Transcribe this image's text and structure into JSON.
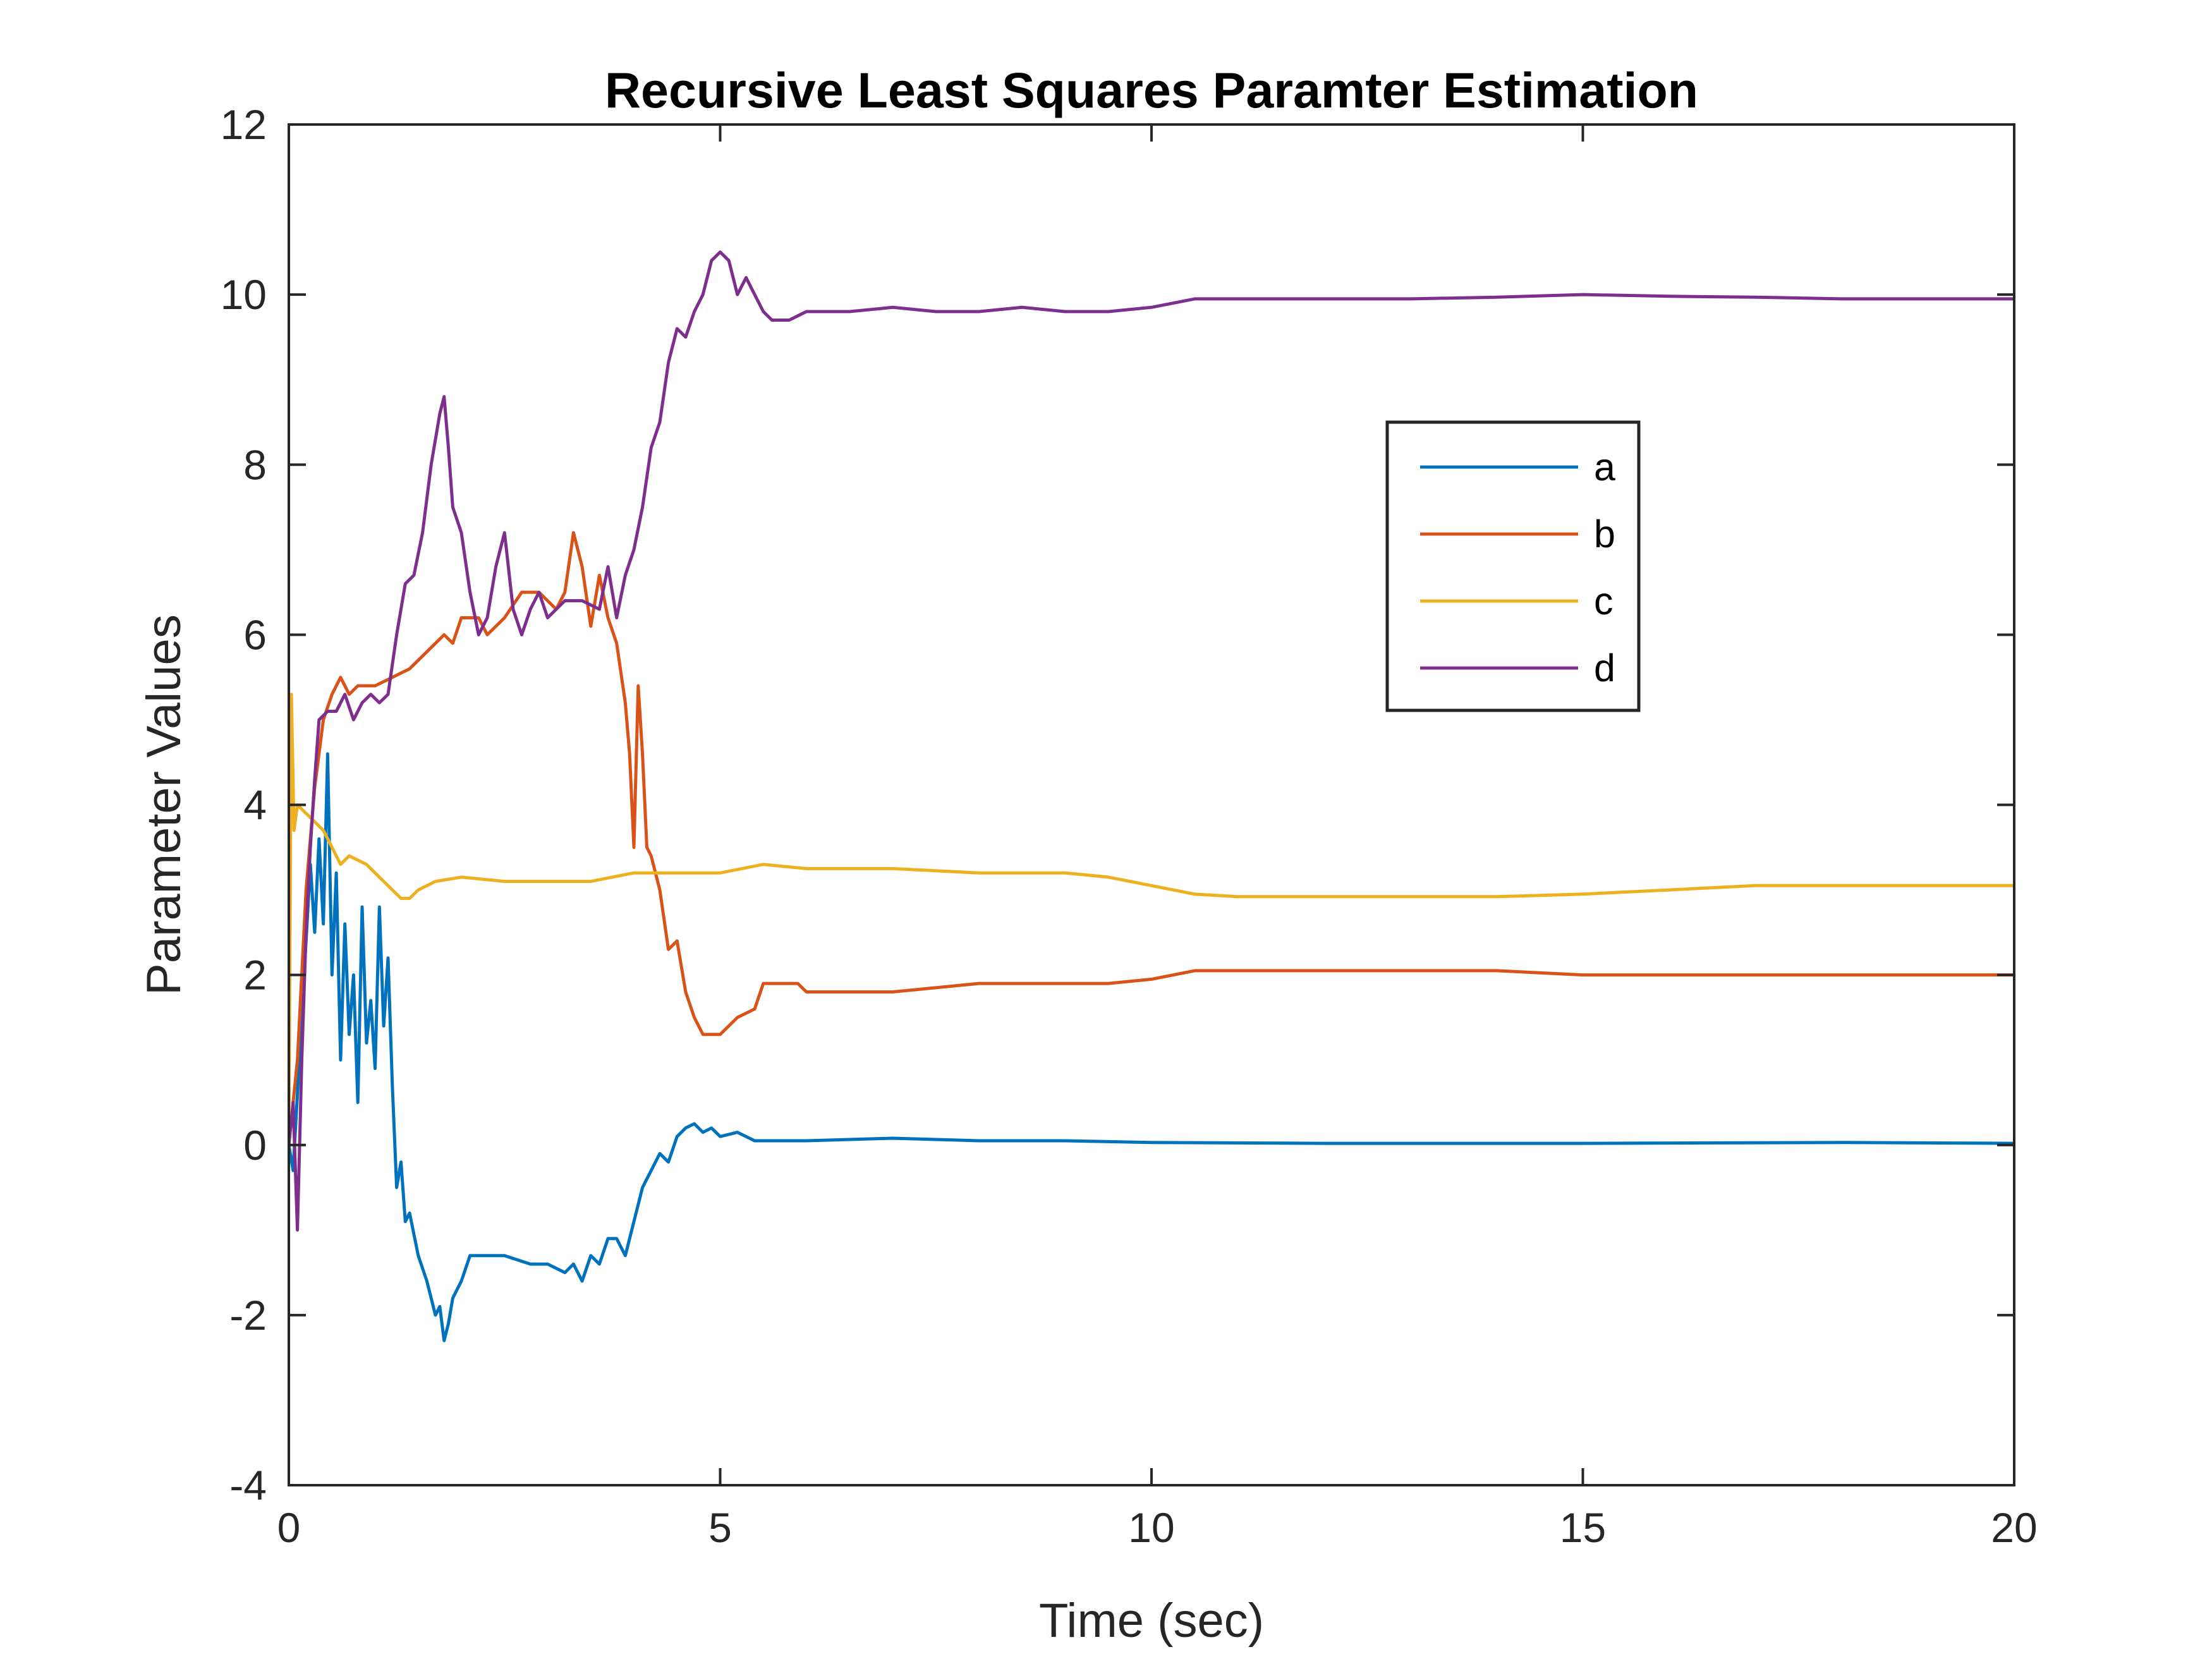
{
  "chart_data": {
    "type": "line",
    "title": "Recursive Least Squares Paramter Estimation",
    "xlabel": "Time (sec)",
    "ylabel": "Parameter Values",
    "xlim": [
      0,
      20
    ],
    "ylim": [
      -4,
      12
    ],
    "xticks": [
      0,
      5,
      10,
      15,
      20
    ],
    "yticks": [
      -4,
      -2,
      0,
      2,
      4,
      6,
      8,
      10,
      12
    ],
    "grid": false,
    "legend_position": "upper-right inside axes",
    "series": [
      {
        "name": "a",
        "color": "#0072BD",
        "points": [
          [
            0,
            0
          ],
          [
            0.05,
            -0.3
          ],
          [
            0.1,
            0.6
          ],
          [
            0.15,
            1.6
          ],
          [
            0.2,
            2.4
          ],
          [
            0.25,
            3.3
          ],
          [
            0.3,
            2.5
          ],
          [
            0.35,
            3.6
          ],
          [
            0.4,
            2.6
          ],
          [
            0.45,
            4.6
          ],
          [
            0.5,
            2.0
          ],
          [
            0.55,
            3.2
          ],
          [
            0.6,
            1.0
          ],
          [
            0.65,
            2.6
          ],
          [
            0.7,
            1.3
          ],
          [
            0.75,
            2.0
          ],
          [
            0.8,
            0.5
          ],
          [
            0.85,
            2.8
          ],
          [
            0.9,
            1.2
          ],
          [
            0.95,
            1.7
          ],
          [
            1.0,
            0.9
          ],
          [
            1.05,
            2.8
          ],
          [
            1.1,
            1.4
          ],
          [
            1.15,
            2.2
          ],
          [
            1.2,
            0.7
          ],
          [
            1.25,
            -0.5
          ],
          [
            1.3,
            -0.2
          ],
          [
            1.35,
            -0.9
          ],
          [
            1.4,
            -0.8
          ],
          [
            1.5,
            -1.3
          ],
          [
            1.6,
            -1.6
          ],
          [
            1.7,
            -2.0
          ],
          [
            1.75,
            -1.9
          ],
          [
            1.8,
            -2.3
          ],
          [
            1.85,
            -2.1
          ],
          [
            1.9,
            -1.8
          ],
          [
            2.0,
            -1.6
          ],
          [
            2.1,
            -1.3
          ],
          [
            2.3,
            -1.3
          ],
          [
            2.5,
            -1.3
          ],
          [
            2.8,
            -1.4
          ],
          [
            3.0,
            -1.4
          ],
          [
            3.2,
            -1.5
          ],
          [
            3.3,
            -1.4
          ],
          [
            3.4,
            -1.6
          ],
          [
            3.5,
            -1.3
          ],
          [
            3.6,
            -1.4
          ],
          [
            3.7,
            -1.1
          ],
          [
            3.8,
            -1.1
          ],
          [
            3.9,
            -1.3
          ],
          [
            4.0,
            -0.9
          ],
          [
            4.1,
            -0.5
          ],
          [
            4.2,
            -0.3
          ],
          [
            4.3,
            -0.1
          ],
          [
            4.4,
            -0.2
          ],
          [
            4.5,
            0.1
          ],
          [
            4.6,
            0.2
          ],
          [
            4.7,
            0.25
          ],
          [
            4.8,
            0.15
          ],
          [
            4.9,
            0.2
          ],
          [
            5.0,
            0.1
          ],
          [
            5.2,
            0.15
          ],
          [
            5.4,
            0.05
          ],
          [
            6.0,
            0.05
          ],
          [
            7.0,
            0.08
          ],
          [
            8.0,
            0.05
          ],
          [
            9.0,
            0.05
          ],
          [
            10.0,
            0.03
          ],
          [
            12.0,
            0.02
          ],
          [
            15.0,
            0.02
          ],
          [
            18.0,
            0.03
          ],
          [
            20.0,
            0.02
          ]
        ]
      },
      {
        "name": "b",
        "color": "#D95319",
        "points": [
          [
            0,
            0
          ],
          [
            0.1,
            1.0
          ],
          [
            0.2,
            3.0
          ],
          [
            0.3,
            4.2
          ],
          [
            0.4,
            5.0
          ],
          [
            0.5,
            5.3
          ],
          [
            0.6,
            5.5
          ],
          [
            0.7,
            5.3
          ],
          [
            0.8,
            5.4
          ],
          [
            1.0,
            5.4
          ],
          [
            1.2,
            5.5
          ],
          [
            1.4,
            5.6
          ],
          [
            1.6,
            5.8
          ],
          [
            1.8,
            6.0
          ],
          [
            1.9,
            5.9
          ],
          [
            2.0,
            6.2
          ],
          [
            2.2,
            6.2
          ],
          [
            2.3,
            6.0
          ],
          [
            2.5,
            6.2
          ],
          [
            2.7,
            6.5
          ],
          [
            2.9,
            6.5
          ],
          [
            3.1,
            6.3
          ],
          [
            3.2,
            6.5
          ],
          [
            3.3,
            7.2
          ],
          [
            3.4,
            6.8
          ],
          [
            3.5,
            6.1
          ],
          [
            3.6,
            6.7
          ],
          [
            3.7,
            6.2
          ],
          [
            3.8,
            5.9
          ],
          [
            3.9,
            5.2
          ],
          [
            3.95,
            4.6
          ],
          [
            4.0,
            3.5
          ],
          [
            4.05,
            5.4
          ],
          [
            4.1,
            4.6
          ],
          [
            4.15,
            3.5
          ],
          [
            4.2,
            3.4
          ],
          [
            4.3,
            3.0
          ],
          [
            4.4,
            2.3
          ],
          [
            4.5,
            2.4
          ],
          [
            4.6,
            1.8
          ],
          [
            4.7,
            1.5
          ],
          [
            4.8,
            1.3
          ],
          [
            5.0,
            1.3
          ],
          [
            5.2,
            1.5
          ],
          [
            5.4,
            1.6
          ],
          [
            5.5,
            1.9
          ],
          [
            5.7,
            1.9
          ],
          [
            5.9,
            1.9
          ],
          [
            6.0,
            1.8
          ],
          [
            6.5,
            1.8
          ],
          [
            7.0,
            1.8
          ],
          [
            8.0,
            1.9
          ],
          [
            9.0,
            1.9
          ],
          [
            9.5,
            1.9
          ],
          [
            10.0,
            1.95
          ],
          [
            10.5,
            2.05
          ],
          [
            11.0,
            2.05
          ],
          [
            12.0,
            2.05
          ],
          [
            13.0,
            2.05
          ],
          [
            14.0,
            2.05
          ],
          [
            15.0,
            2.0
          ],
          [
            16.0,
            2.0
          ],
          [
            17.0,
            2.0
          ],
          [
            18.0,
            2.0
          ],
          [
            19.0,
            2.0
          ],
          [
            20.0,
            2.0
          ]
        ]
      },
      {
        "name": "c",
        "color": "#EDB120",
        "points": [
          [
            0,
            0
          ],
          [
            0.03,
            5.3
          ],
          [
            0.06,
            3.7
          ],
          [
            0.1,
            4.0
          ],
          [
            0.2,
            3.9
          ],
          [
            0.3,
            3.8
          ],
          [
            0.4,
            3.7
          ],
          [
            0.5,
            3.5
          ],
          [
            0.6,
            3.3
          ],
          [
            0.7,
            3.4
          ],
          [
            0.8,
            3.35
          ],
          [
            0.9,
            3.3
          ],
          [
            1.0,
            3.2
          ],
          [
            1.1,
            3.1
          ],
          [
            1.2,
            3.0
          ],
          [
            1.3,
            2.9
          ],
          [
            1.4,
            2.9
          ],
          [
            1.5,
            3.0
          ],
          [
            1.7,
            3.1
          ],
          [
            2.0,
            3.15
          ],
          [
            2.5,
            3.1
          ],
          [
            3.0,
            3.1
          ],
          [
            3.5,
            3.1
          ],
          [
            4.0,
            3.2
          ],
          [
            4.5,
            3.2
          ],
          [
            5.0,
            3.2
          ],
          [
            5.5,
            3.3
          ],
          [
            6.0,
            3.25
          ],
          [
            7.0,
            3.25
          ],
          [
            8.0,
            3.2
          ],
          [
            9.0,
            3.2
          ],
          [
            9.5,
            3.15
          ],
          [
            10.0,
            3.05
          ],
          [
            10.5,
            2.95
          ],
          [
            11.0,
            2.92
          ],
          [
            12.0,
            2.92
          ],
          [
            13.0,
            2.92
          ],
          [
            14.0,
            2.92
          ],
          [
            15.0,
            2.95
          ],
          [
            16.0,
            3.0
          ],
          [
            17.0,
            3.05
          ],
          [
            18.0,
            3.05
          ],
          [
            19.0,
            3.05
          ],
          [
            20.0,
            3.05
          ]
        ]
      },
      {
        "name": "d",
        "color": "#7E2F8E",
        "points": [
          [
            0,
            0
          ],
          [
            0.05,
            0.5
          ],
          [
            0.1,
            -1.0
          ],
          [
            0.15,
            1.0
          ],
          [
            0.2,
            2.5
          ],
          [
            0.25,
            3.5
          ],
          [
            0.3,
            4.3
          ],
          [
            0.35,
            5.0
          ],
          [
            0.45,
            5.1
          ],
          [
            0.55,
            5.1
          ],
          [
            0.65,
            5.3
          ],
          [
            0.75,
            5.0
          ],
          [
            0.85,
            5.2
          ],
          [
            0.95,
            5.3
          ],
          [
            1.05,
            5.2
          ],
          [
            1.15,
            5.3
          ],
          [
            1.25,
            6.0
          ],
          [
            1.35,
            6.6
          ],
          [
            1.45,
            6.7
          ],
          [
            1.55,
            7.2
          ],
          [
            1.65,
            8.0
          ],
          [
            1.75,
            8.6
          ],
          [
            1.8,
            8.8
          ],
          [
            1.85,
            8.2
          ],
          [
            1.9,
            7.5
          ],
          [
            2.0,
            7.2
          ],
          [
            2.1,
            6.5
          ],
          [
            2.2,
            6.0
          ],
          [
            2.3,
            6.2
          ],
          [
            2.4,
            6.8
          ],
          [
            2.5,
            7.2
          ],
          [
            2.6,
            6.3
          ],
          [
            2.7,
            6.0
          ],
          [
            2.8,
            6.3
          ],
          [
            2.9,
            6.5
          ],
          [
            3.0,
            6.2
          ],
          [
            3.2,
            6.4
          ],
          [
            3.4,
            6.4
          ],
          [
            3.6,
            6.3
          ],
          [
            3.7,
            6.8
          ],
          [
            3.8,
            6.2
          ],
          [
            3.9,
            6.7
          ],
          [
            4.0,
            7.0
          ],
          [
            4.1,
            7.5
          ],
          [
            4.2,
            8.2
          ],
          [
            4.3,
            8.5
          ],
          [
            4.4,
            9.2
          ],
          [
            4.5,
            9.6
          ],
          [
            4.6,
            9.5
          ],
          [
            4.7,
            9.8
          ],
          [
            4.8,
            10.0
          ],
          [
            4.9,
            10.4
          ],
          [
            5.0,
            10.5
          ],
          [
            5.1,
            10.4
          ],
          [
            5.2,
            10.0
          ],
          [
            5.3,
            10.2
          ],
          [
            5.4,
            10.0
          ],
          [
            5.5,
            9.8
          ],
          [
            5.6,
            9.7
          ],
          [
            5.8,
            9.7
          ],
          [
            6.0,
            9.8
          ],
          [
            6.5,
            9.8
          ],
          [
            7.0,
            9.85
          ],
          [
            7.5,
            9.8
          ],
          [
            8.0,
            9.8
          ],
          [
            8.5,
            9.85
          ],
          [
            9.0,
            9.8
          ],
          [
            9.5,
            9.8
          ],
          [
            10.0,
            9.85
          ],
          [
            10.5,
            9.95
          ],
          [
            11.0,
            9.95
          ],
          [
            12.0,
            9.95
          ],
          [
            13.0,
            9.95
          ],
          [
            14.0,
            9.97
          ],
          [
            15.0,
            10.0
          ],
          [
            16.0,
            9.98
          ],
          [
            17.0,
            9.97
          ],
          [
            18.0,
            9.95
          ],
          [
            19.0,
            9.95
          ],
          [
            20.0,
            9.95
          ]
        ]
      }
    ]
  }
}
